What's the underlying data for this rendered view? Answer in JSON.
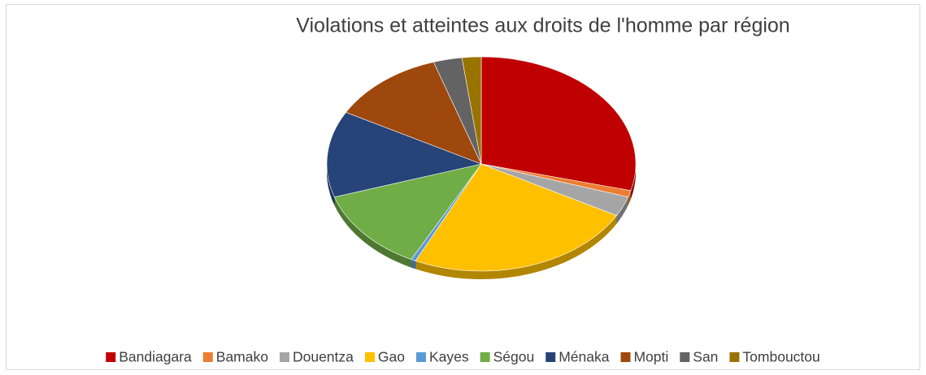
{
  "chart_data": {
    "type": "pie",
    "title": "Violations et atteintes aux droits de l'homme par région",
    "categories": [
      "Bandiagara",
      "Bamako",
      "Douentza",
      "Gao",
      "Kayes",
      "Ségou",
      "Ménaka",
      "Mopti",
      "San",
      "Tombouctou"
    ],
    "values": [
      29,
      1,
      3,
      24,
      0.5,
      12.5,
      13,
      12,
      3,
      2
    ],
    "colors": [
      "#c00000",
      "#ed7d31",
      "#a5a5a5",
      "#ffc000",
      "#5b9bd5",
      "#70ad47",
      "#264478",
      "#9e480e",
      "#636363",
      "#997300"
    ],
    "legend": "bottom"
  }
}
